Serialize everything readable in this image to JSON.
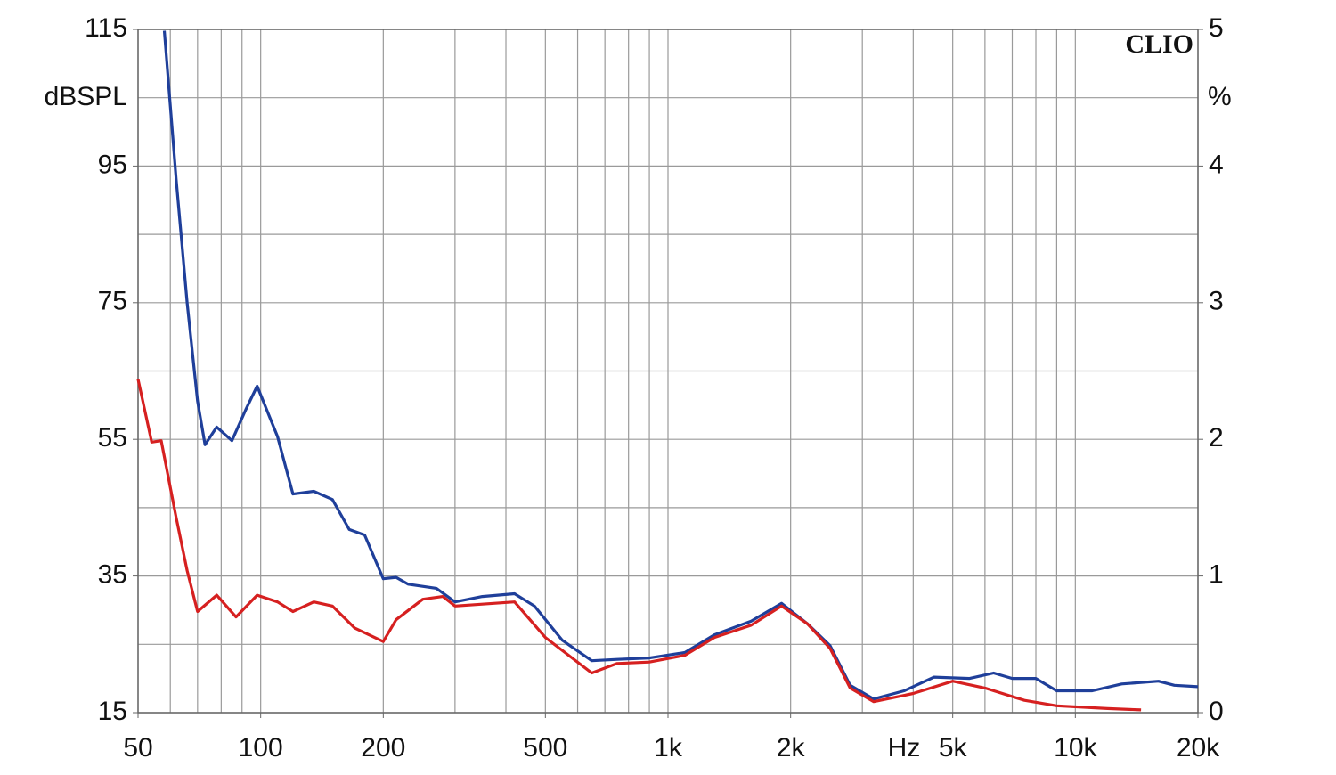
{
  "chart_data": {
    "type": "line",
    "annotation": "CLIO",
    "xlabel": "Hz",
    "ylabel": "dBSPL",
    "y2label": "%",
    "xscale": "log",
    "xlim": [
      50,
      20000
    ],
    "xticks": [
      50,
      100,
      200,
      500,
      {
        "value": 1000,
        "label": "1k"
      },
      {
        "value": 2000,
        "label": "2k"
      },
      {
        "value": 5000,
        "label": "5k"
      },
      {
        "value": 10000,
        "label": "10k"
      },
      {
        "value": 20000,
        "label": "20k"
      }
    ],
    "xgrid": [
      50,
      60,
      70,
      80,
      90,
      100,
      200,
      300,
      400,
      500,
      600,
      700,
      800,
      900,
      1000,
      2000,
      3000,
      4000,
      5000,
      6000,
      7000,
      8000,
      9000,
      10000,
      20000
    ],
    "ylim": [
      15,
      115
    ],
    "yticks": [
      115,
      95,
      75,
      55,
      35,
      15
    ],
    "ygrid": [
      15,
      25,
      35,
      45,
      55,
      65,
      75,
      85,
      95,
      105,
      115
    ],
    "y2lim": [
      0,
      5
    ],
    "y2ticks": [
      5,
      4,
      3,
      2,
      1,
      0
    ],
    "grid": true,
    "series": [
      {
        "color": "#1f3f9a",
        "axis": "y2",
        "x": [
          58,
          62,
          66,
          70,
          73,
          78,
          85,
          92,
          98,
          110,
          120,
          135,
          150,
          165,
          180,
          200,
          215,
          230,
          270,
          300,
          350,
          420,
          470,
          550,
          650,
          750,
          900,
          1100,
          1300,
          1600,
          1900,
          2200,
          2500,
          2800,
          3200,
          3800,
          4500,
          5500,
          6300,
          7000,
          8000,
          9000,
          11000,
          13000,
          16000,
          17500,
          20000
        ],
        "values": [
          4.99,
          3.91,
          3.0,
          2.28,
          1.96,
          2.09,
          1.99,
          2.22,
          2.39,
          2.02,
          1.6,
          1.62,
          1.56,
          1.34,
          1.3,
          0.98,
          0.99,
          0.94,
          0.91,
          0.81,
          0.85,
          0.87,
          0.78,
          0.53,
          0.38,
          0.39,
          0.4,
          0.44,
          0.57,
          0.67,
          0.8,
          0.65,
          0.49,
          0.2,
          0.1,
          0.16,
          0.26,
          0.25,
          0.29,
          0.25,
          0.25,
          0.16,
          0.16,
          0.21,
          0.23,
          0.2,
          0.19
        ]
      },
      {
        "color": "#d62020",
        "axis": "y2",
        "x": [
          50,
          54,
          57,
          62,
          66,
          70,
          78,
          87,
          98,
          110,
          120,
          135,
          150,
          170,
          200,
          215,
          250,
          280,
          300,
          420,
          500,
          650,
          750,
          900,
          1100,
          1300,
          1600,
          1900,
          2200,
          2500,
          2800,
          3200,
          4000,
          5000,
          6000,
          7500,
          9000,
          12000,
          14500
        ],
        "values": [
          2.44,
          1.98,
          1.99,
          1.43,
          1.04,
          0.74,
          0.86,
          0.7,
          0.86,
          0.81,
          0.74,
          0.81,
          0.78,
          0.62,
          0.52,
          0.68,
          0.83,
          0.85,
          0.78,
          0.81,
          0.55,
          0.29,
          0.36,
          0.37,
          0.42,
          0.55,
          0.64,
          0.78,
          0.65,
          0.47,
          0.18,
          0.08,
          0.14,
          0.23,
          0.18,
          0.09,
          0.05,
          0.03,
          0.02
        ]
      }
    ]
  }
}
